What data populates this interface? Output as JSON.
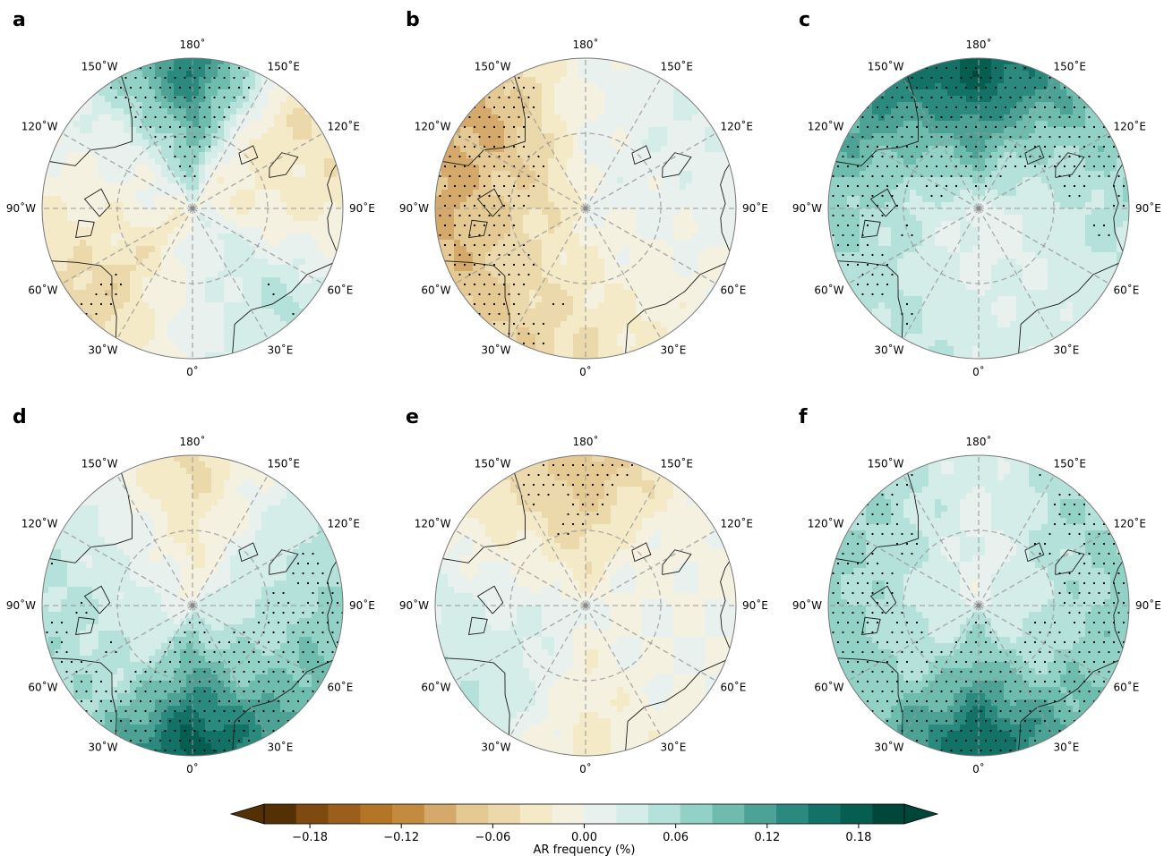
{
  "chart_data": {
    "type": "heatmap",
    "projection": "north-polar-stereographic",
    "panels": [
      {
        "label": "a",
        "pattern": [
          0.15,
          -0.04,
          -0.03,
          0.05,
          0.01,
          -0.06,
          -0.02,
          0.02
        ]
      },
      {
        "label": "b",
        "pattern": [
          0.0,
          0.02,
          0.01,
          -0.01,
          -0.04,
          -0.07,
          -0.09,
          -0.09
        ]
      },
      {
        "label": "c",
        "pattern": [
          0.18,
          0.09,
          0.05,
          0.03,
          0.03,
          0.05,
          0.07,
          0.12
        ]
      },
      {
        "label": "d",
        "pattern": [
          -0.05,
          0.03,
          0.07,
          0.1,
          0.18,
          0.06,
          0.05,
          0.02
        ]
      },
      {
        "label": "e",
        "pattern": [
          -0.08,
          -0.01,
          0.0,
          0.0,
          -0.03,
          0.04,
          0.03,
          -0.03
        ]
      },
      {
        "label": "f",
        "pattern": [
          0.02,
          0.06,
          0.07,
          0.09,
          0.17,
          0.08,
          0.07,
          0.06
        ]
      }
    ],
    "lon_labels": [
      "180˚",
      "150˚E",
      "120˚E",
      "90˚E",
      "60˚E",
      "30˚E",
      "0˚",
      "30˚W",
      "60˚W",
      "90˚W",
      "120˚W",
      "150˚W"
    ],
    "colorbar": {
      "label": "AR frequency (%)",
      "ticks": [
        "−0.18",
        "−0.12",
        "−0.06",
        "0.00",
        "0.06",
        "0.12",
        "0.18"
      ],
      "range": [
        -0.21,
        0.21
      ],
      "extend": "both",
      "colors": [
        "#543005",
        "#7f4a10",
        "#9a5f1a",
        "#b27626",
        "#c28b3e",
        "#d4a96a",
        "#e4c993",
        "#ecd9ab",
        "#f4eac8",
        "#f5f1e1",
        "#e9f1ef",
        "#d5ede9",
        "#b4e1da",
        "#92d2c6",
        "#6ebcae",
        "#4ba295",
        "#2a8a7e",
        "#137266",
        "#065e50",
        "#00473a"
      ],
      "colorscheme": "BrBG"
    }
  }
}
